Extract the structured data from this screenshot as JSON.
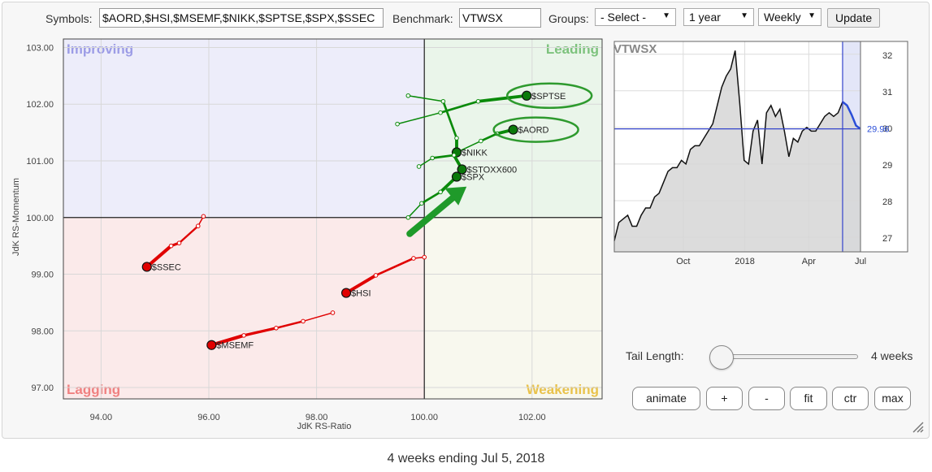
{
  "toolbar": {
    "symbols_label": "Symbols:",
    "symbols_value": "$AORD,$HSI,$MSEMF,$NIKK,$SPTSE,$SPX,$SSEC",
    "benchmark_label": "Benchmark:",
    "benchmark_value": "VTWSX",
    "groups_label": "Groups:",
    "groups_selected": "- Select -",
    "period_selected": "1 year",
    "interval_selected": "Weekly",
    "update_label": "Update"
  },
  "rrg": {
    "xlabel": "JdK RS-Ratio",
    "ylabel": "JdK RS-Momentum",
    "quadrants": {
      "improving": "Improving",
      "leading": "Leading",
      "lagging": "Lagging",
      "weakening": "Weakening"
    },
    "colors": {
      "improving": "#ededfa",
      "leading": "#eaf5ea",
      "lagging": "#fbeaea",
      "weakening": "#f8f8ee",
      "improving_text": "#9c9ce6",
      "leading_text": "#7cc27c",
      "lagging_text": "#f08080",
      "weakening_text": "#e9c24a"
    }
  },
  "chart_data": [
    {
      "type": "scatter",
      "xlabel": "JdK RS-Ratio",
      "ylabel": "JdK RS-Momentum",
      "xlim": [
        93.3,
        103.3
      ],
      "ylim": [
        96.8,
        103.15
      ],
      "xticks": [
        "94.00",
        "96.00",
        "98.00",
        "100.00",
        "102.00"
      ],
      "yticks": [
        "97.00",
        "98.00",
        "99.00",
        "100.00",
        "101.00",
        "102.00",
        "103.00"
      ],
      "series": [
        {
          "name": "$SPTSE",
          "color": "#0a8a0a",
          "x": [
            99.5,
            100.3,
            101.0,
            101.9
          ],
          "y": [
            101.65,
            101.85,
            102.05,
            102.15
          ]
        },
        {
          "name": "$AORD",
          "color": "#0a8a0a",
          "x": [
            100.6,
            101.05,
            101.35,
            101.65
          ],
          "y": [
            101.15,
            101.35,
            101.48,
            101.55
          ]
        },
        {
          "name": "$NIKK",
          "color": "#0a8a0a",
          "x": [
            99.7,
            100.35,
            100.6,
            100.6
          ],
          "y": [
            102.15,
            102.05,
            101.4,
            101.15
          ]
        },
        {
          "name": "$STOXX600",
          "color": "#0a8a0a",
          "x": [
            99.9,
            100.15,
            100.55,
            100.7
          ],
          "y": [
            100.9,
            101.05,
            101.1,
            100.85
          ]
        },
        {
          "name": "$SPX",
          "color": "#0a8a0a",
          "x": [
            99.7,
            99.95,
            100.3,
            100.6
          ],
          "y": [
            100.0,
            100.25,
            100.45,
            100.72
          ]
        },
        {
          "name": "$SSEC",
          "color": "#e00000",
          "x": [
            95.9,
            95.8,
            95.45,
            95.3,
            94.85
          ],
          "y": [
            100.02,
            99.85,
            99.55,
            99.5,
            99.13
          ]
        },
        {
          "name": "$HSI",
          "color": "#e00000",
          "x": [
            100.0,
            99.8,
            99.1,
            98.55
          ],
          "y": [
            99.3,
            99.28,
            98.98,
            98.67
          ]
        },
        {
          "name": "$MSEMF",
          "color": "#e00000",
          "x": [
            98.3,
            97.75,
            97.25,
            96.65,
            96.05
          ],
          "y": [
            98.32,
            98.17,
            98.05,
            97.92,
            97.75
          ]
        }
      ],
      "annotations": [
        "arrow pointing up-right into Leading quadrant",
        "ellipses highlighting $SPTSE and $AORD"
      ]
    },
    {
      "type": "area",
      "title": "VTWSX",
      "x_tick_labels": [
        "Oct",
        "2018",
        "Apr",
        "Jul"
      ],
      "yticks": [
        "27",
        "28",
        "29",
        "30",
        "31",
        "32"
      ],
      "ylim": [
        26.6,
        32.35
      ],
      "last_value": "29.96",
      "values": [
        26.9,
        27.4,
        27.5,
        27.6,
        27.3,
        27.3,
        27.6,
        27.8,
        27.8,
        28.1,
        28.2,
        28.5,
        28.8,
        28.9,
        28.9,
        29.1,
        29.0,
        29.4,
        29.5,
        29.5,
        29.7,
        29.9,
        30.1,
        30.6,
        31.1,
        31.4,
        31.6,
        32.1,
        30.7,
        29.1,
        29.0,
        29.9,
        30.2,
        29.0,
        30.4,
        30.6,
        30.3,
        30.5,
        29.9,
        29.2,
        29.7,
        29.6,
        29.9,
        30.0,
        29.9,
        29.9,
        30.1,
        30.3,
        30.4,
        30.3,
        30.4,
        30.7,
        30.6,
        30.35,
        30.05,
        29.96
      ],
      "tail_start_index": 51,
      "reference_value": 29.96
    }
  ],
  "controls": {
    "tail_length_label": "Tail Length:",
    "tail_length_value": "4 weeks",
    "tail_slider_fraction": 0.0,
    "buttons": {
      "animate": "animate",
      "plus": "+",
      "minus": "-",
      "fit": "fit",
      "ctr": "ctr",
      "max": "max"
    }
  },
  "footer": {
    "caption": "4 weeks ending Jul 5, 2018"
  }
}
